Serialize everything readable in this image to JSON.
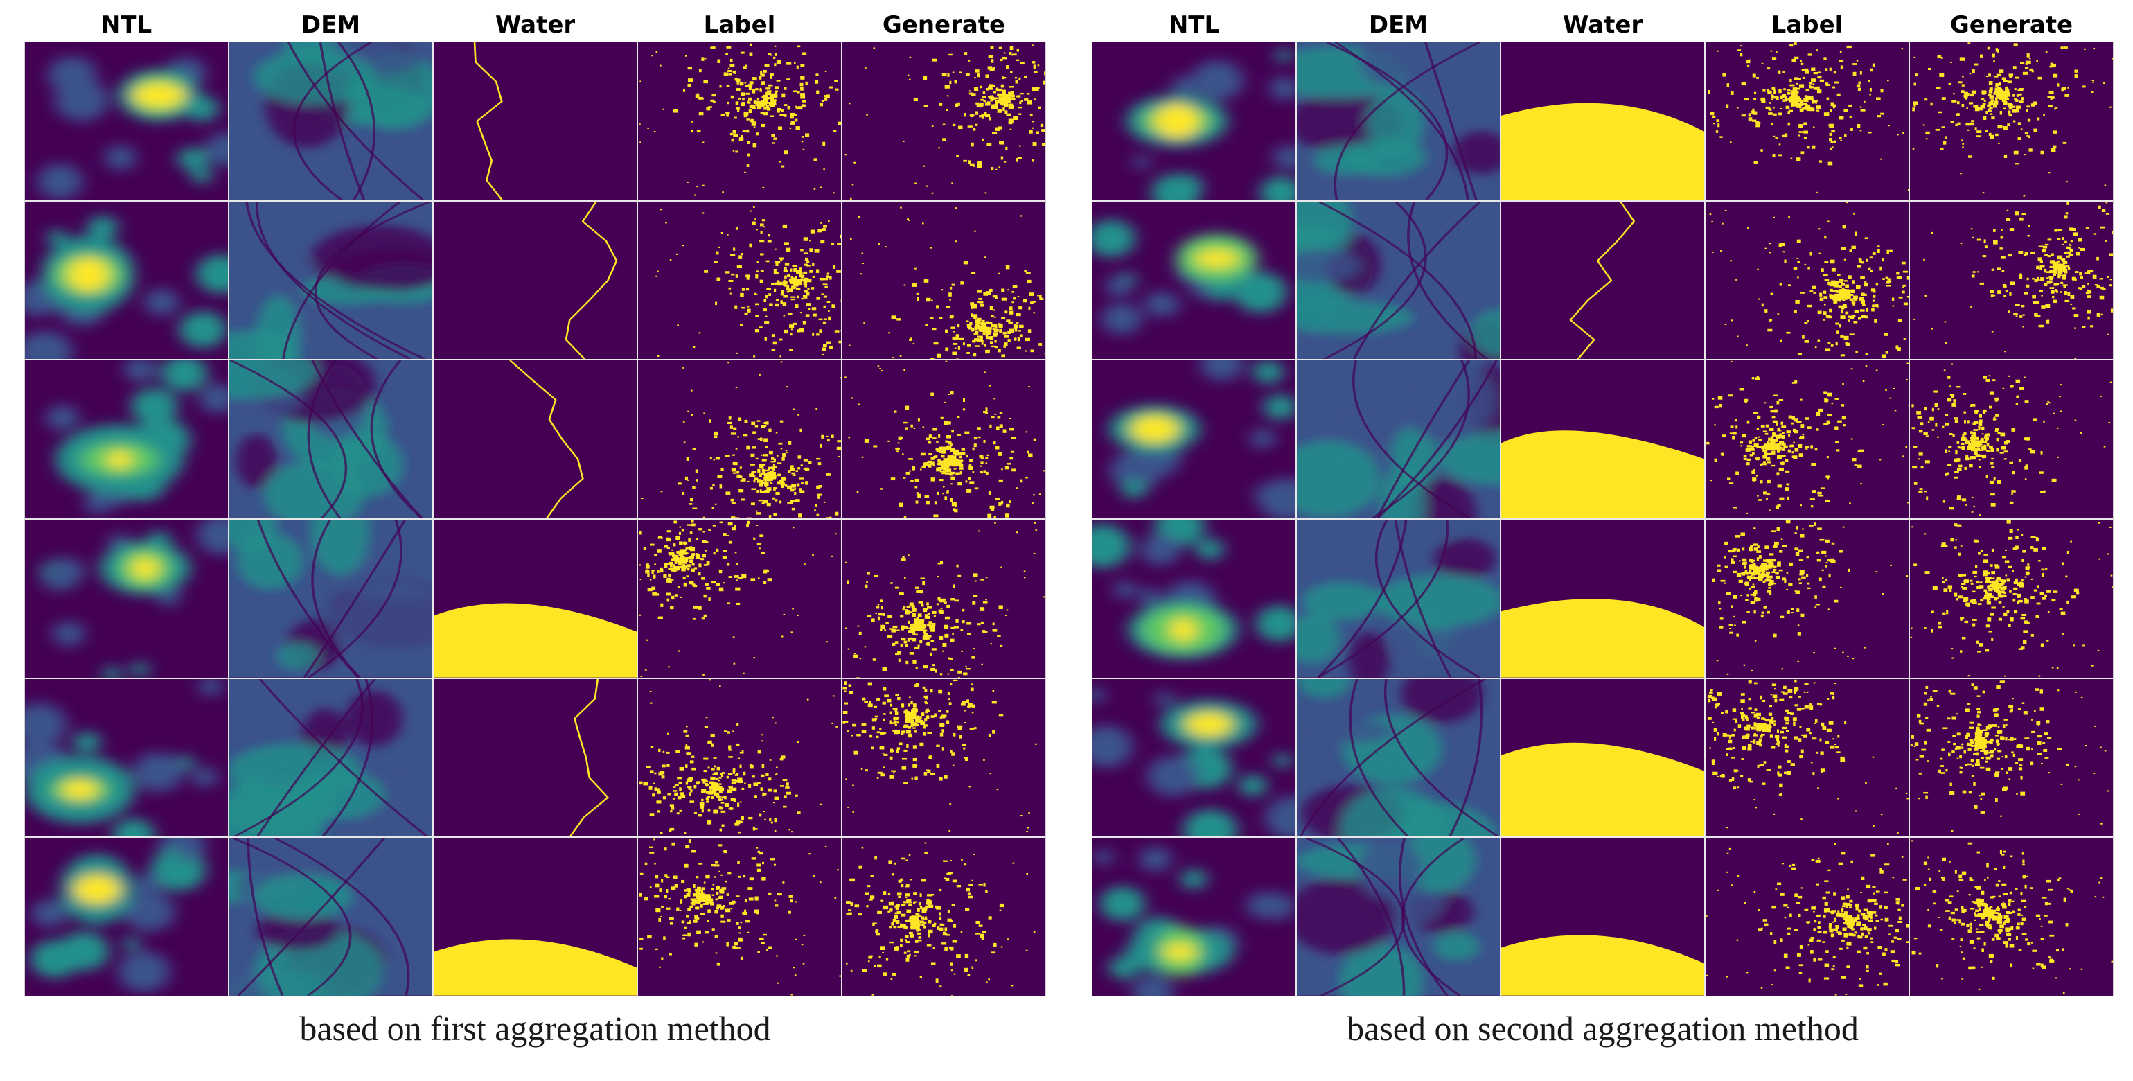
{
  "figure": {
    "columns": [
      "NTL",
      "DEM",
      "Water",
      "Label",
      "Generate"
    ],
    "panels": [
      {
        "id": "left",
        "caption": "based on first aggregation method"
      },
      {
        "id": "right",
        "caption": "based on second aggregation method"
      }
    ],
    "rows_per_panel": 6,
    "colormap": {
      "low": "#440154",
      "mid_low": "#3b528b",
      "mid": "#21918c",
      "mid_high": "#5ec962",
      "high": "#fde725"
    }
  }
}
